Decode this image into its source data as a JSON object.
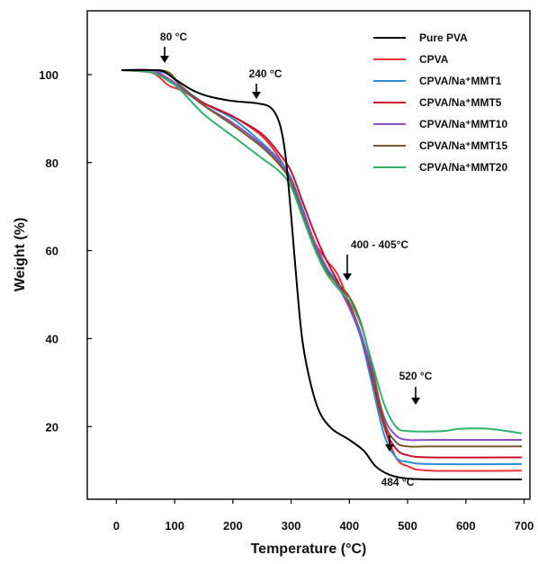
{
  "chart_data": {
    "type": "line",
    "xlabel": "Temperature (°C)",
    "ylabel": "Weight (%)",
    "xlim": [
      -50,
      710
    ],
    "ylim": [
      3.5,
      114.5
    ],
    "xticks": [
      0,
      100,
      200,
      300,
      400,
      500,
      600,
      700
    ],
    "yticks": [
      20,
      40,
      60,
      80,
      100
    ],
    "grid": false,
    "legend_position": "top-right",
    "series": [
      {
        "name": "Pure PVA",
        "color": "#000000",
        "points": [
          [
            10,
            101
          ],
          [
            60,
            101
          ],
          [
            80,
            100.8
          ],
          [
            100,
            99
          ],
          [
            130,
            96.5
          ],
          [
            160,
            95
          ],
          [
            200,
            94
          ],
          [
            240,
            93.5
          ],
          [
            265,
            92.5
          ],
          [
            280,
            89
          ],
          [
            290,
            82
          ],
          [
            300,
            68
          ],
          [
            310,
            52
          ],
          [
            320,
            39
          ],
          [
            335,
            29
          ],
          [
            350,
            23
          ],
          [
            370,
            19.5
          ],
          [
            400,
            17
          ],
          [
            425,
            14.5
          ],
          [
            445,
            11
          ],
          [
            470,
            9
          ],
          [
            500,
            8.2
          ],
          [
            550,
            8
          ],
          [
            695,
            8
          ]
        ]
      },
      {
        "name": "CPVA",
        "color": "#e8323c",
        "points": [
          [
            10,
            101
          ],
          [
            60,
            100.5
          ],
          [
            90,
            97.5
          ],
          [
            110,
            96.5
          ],
          [
            150,
            93.5
          ],
          [
            200,
            90.5
          ],
          [
            250,
            86
          ],
          [
            280,
            81
          ],
          [
            300,
            76
          ],
          [
            320,
            68.5
          ],
          [
            340,
            62
          ],
          [
            360,
            58
          ],
          [
            380,
            54.5
          ],
          [
            400,
            48
          ],
          [
            420,
            41
          ],
          [
            440,
            30
          ],
          [
            460,
            20
          ],
          [
            480,
            13
          ],
          [
            500,
            11
          ],
          [
            540,
            10
          ],
          [
            695,
            10
          ]
        ]
      },
      {
        "name": "CPVA/Na⁺MMT1",
        "color": "#2b8fcf",
        "points": [
          [
            10,
            101
          ],
          [
            60,
            101
          ],
          [
            90,
            100
          ],
          [
            110,
            97.5
          ],
          [
            150,
            93.5
          ],
          [
            200,
            90
          ],
          [
            250,
            84.5
          ],
          [
            280,
            80.5
          ],
          [
            300,
            76.5
          ],
          [
            320,
            69.5
          ],
          [
            340,
            62
          ],
          [
            360,
            56.5
          ],
          [
            380,
            52.5
          ],
          [
            400,
            47
          ],
          [
            420,
            40
          ],
          [
            440,
            29
          ],
          [
            460,
            18
          ],
          [
            480,
            13
          ],
          [
            500,
            12
          ],
          [
            540,
            11.5
          ],
          [
            695,
            11.5
          ]
        ]
      },
      {
        "name": "CPVA/Na⁺MMT5",
        "color": "#c8102e",
        "points": [
          [
            10,
            101
          ],
          [
            60,
            100.5
          ],
          [
            90,
            99
          ],
          [
            110,
            97
          ],
          [
            150,
            93.5
          ],
          [
            200,
            90.5
          ],
          [
            250,
            86.5
          ],
          [
            280,
            82
          ],
          [
            300,
            78
          ],
          [
            320,
            71
          ],
          [
            340,
            64
          ],
          [
            360,
            58
          ],
          [
            380,
            53
          ],
          [
            400,
            47.5
          ],
          [
            420,
            41
          ],
          [
            440,
            31
          ],
          [
            460,
            20
          ],
          [
            480,
            15
          ],
          [
            500,
            13.5
          ],
          [
            540,
            13
          ],
          [
            695,
            13
          ]
        ]
      },
      {
        "name": "CPVA/Na⁺MMT10",
        "color": "#8a4fc7",
        "points": [
          [
            10,
            101
          ],
          [
            60,
            101
          ],
          [
            90,
            99
          ],
          [
            110,
            97
          ],
          [
            150,
            93
          ],
          [
            200,
            89
          ],
          [
            250,
            84
          ],
          [
            280,
            80
          ],
          [
            300,
            76
          ],
          [
            320,
            69
          ],
          [
            340,
            62
          ],
          [
            360,
            56
          ],
          [
            380,
            52
          ],
          [
            400,
            47
          ],
          [
            420,
            41
          ],
          [
            440,
            32
          ],
          [
            460,
            22
          ],
          [
            480,
            18
          ],
          [
            500,
            17
          ],
          [
            540,
            17
          ],
          [
            695,
            17
          ]
        ]
      },
      {
        "name": "CPVA/Na⁺MMT15",
        "color": "#7a5a2c",
        "points": [
          [
            10,
            101
          ],
          [
            60,
            101
          ],
          [
            90,
            100.5
          ],
          [
            110,
            97.5
          ],
          [
            150,
            93
          ],
          [
            200,
            88.5
          ],
          [
            250,
            83.5
          ],
          [
            280,
            79.5
          ],
          [
            300,
            75.5
          ],
          [
            320,
            68
          ],
          [
            340,
            61
          ],
          [
            360,
            55.5
          ],
          [
            380,
            52.5
          ],
          [
            400,
            49.5
          ],
          [
            420,
            43.5
          ],
          [
            440,
            33
          ],
          [
            460,
            21
          ],
          [
            480,
            16.5
          ],
          [
            500,
            15.5
          ],
          [
            540,
            15.5
          ],
          [
            695,
            15.5
          ]
        ]
      },
      {
        "name": "CPVA/Na⁺MMT20",
        "color": "#2fb36a",
        "points": [
          [
            10,
            101
          ],
          [
            60,
            100.5
          ],
          [
            90,
            98.5
          ],
          [
            110,
            96.5
          ],
          [
            150,
            91
          ],
          [
            200,
            86
          ],
          [
            250,
            81
          ],
          [
            280,
            78
          ],
          [
            300,
            74.5
          ],
          [
            320,
            67.5
          ],
          [
            340,
            60.5
          ],
          [
            360,
            55
          ],
          [
            380,
            51.5
          ],
          [
            400,
            48.5
          ],
          [
            420,
            43
          ],
          [
            440,
            34
          ],
          [
            460,
            25
          ],
          [
            480,
            20
          ],
          [
            500,
            19
          ],
          [
            560,
            19
          ],
          [
            590,
            19.5
          ],
          [
            640,
            19.5
          ],
          [
            695,
            18.5
          ]
        ]
      }
    ],
    "annotations": [
      {
        "text": "80 °C",
        "x": 85,
        "y": 103.5
      },
      {
        "text": "240 °C",
        "x": 245,
        "y": 96.5
      },
      {
        "text": "400 - 405°C",
        "x": 402,
        "y": 52.5
      },
      {
        "text": "520 °C",
        "x": 520,
        "y": 24.5
      },
      {
        "text": "484 °C",
        "x": 478,
        "y": 12
      }
    ]
  }
}
